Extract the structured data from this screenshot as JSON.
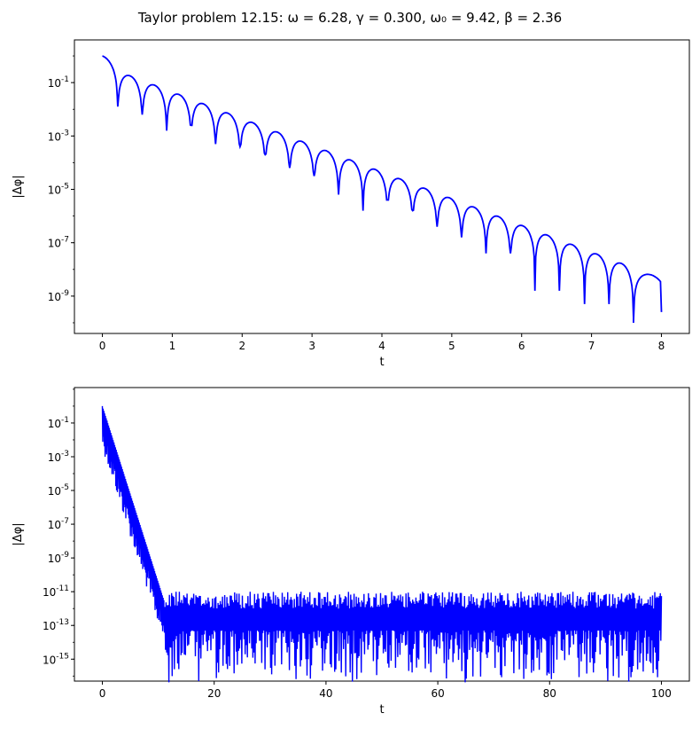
{
  "figure": {
    "title": "Taylor problem 12.15:   ω = 6.28,  γ = 0.300,  ω₀ = 9.42,  β = 2.36"
  },
  "chart_data": [
    {
      "type": "line",
      "xlabel": "t",
      "ylabel": "|Δφ|",
      "y_scale": "log",
      "xlim": [
        -0.4,
        8.4
      ],
      "ylim_exp": [
        -10.4,
        0.6
      ],
      "x_ticks": [
        "0",
        "1",
        "2",
        "3",
        "4",
        "5",
        "6",
        "7",
        "8"
      ],
      "y_ticks": [
        {
          "base": "10",
          "exp": "-1"
        },
        {
          "base": "10",
          "exp": "-3"
        },
        {
          "base": "10",
          "exp": "-5"
        },
        {
          "base": "10",
          "exp": "-7"
        },
        {
          "base": "10",
          "exp": "-9"
        }
      ],
      "series_color": "#0000ff",
      "series": [
        {
          "envelope_exp": {
            "t": [
              0,
              8
            ],
            "log10": [
              0.0,
              -8.0
            ]
          },
          "dip_t": [
            0.22,
            0.57,
            0.92,
            1.27,
            1.62,
            1.97,
            2.33,
            2.68,
            3.03,
            3.38,
            3.73,
            4.08,
            4.44,
            4.79,
            5.14,
            5.49,
            5.84,
            6.19,
            6.54,
            6.9,
            7.25,
            7.6
          ],
          "dip_log10": [
            -1.9,
            -2.2,
            -2.8,
            -2.6,
            -3.3,
            -3.4,
            -3.7,
            -4.2,
            -4.5,
            -5.2,
            -5.8,
            -5.4,
            -5.8,
            -6.4,
            -6.8,
            -7.4,
            -7.4,
            -8.8,
            -8.8,
            -9.3,
            -9.3,
            -9.8
          ],
          "end_log10": -9.6
        }
      ]
    },
    {
      "type": "line",
      "xlabel": "t",
      "ylabel": "|Δφ|",
      "y_scale": "log",
      "xlim": [
        -5,
        105
      ],
      "ylim_exp": [
        -16.3,
        1.1
      ],
      "x_ticks": [
        "0",
        "20",
        "40",
        "60",
        "80",
        "100"
      ],
      "y_ticks": [
        {
          "base": "10",
          "exp": "-1"
        },
        {
          "base": "10",
          "exp": "-3"
        },
        {
          "base": "10",
          "exp": "-5"
        },
        {
          "base": "10",
          "exp": "-7"
        },
        {
          "base": "10",
          "exp": "-9"
        },
        {
          "base": "10",
          "exp": "-11"
        },
        {
          "base": "10",
          "exp": "-13"
        },
        {
          "base": "10",
          "exp": "-15"
        }
      ],
      "series_color": "#0000ff",
      "series": [
        {
          "decay": {
            "t": [
              0,
              11
            ],
            "log10": [
              0.0,
              -11.5
            ]
          },
          "noise_floor": {
            "t": [
              11,
              100
            ],
            "log10_top": -11.0,
            "log10_mid": -13.0,
            "log10_bottom": -15.5
          }
        }
      ]
    }
  ]
}
